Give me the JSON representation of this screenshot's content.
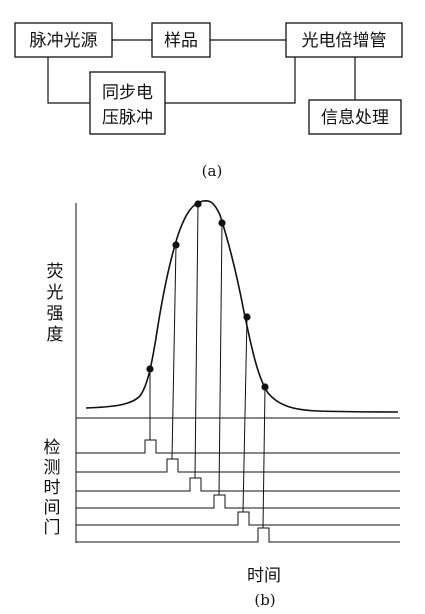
{
  "part_a": {
    "caption": "(a)",
    "boxes": {
      "pulse_source": "脉冲光源",
      "sample": "样品",
      "pmt": "光电倍增管",
      "sync_line1": "同步电",
      "sync_line2": "压脉冲",
      "info_processing": "信息处理"
    }
  },
  "part_b": {
    "caption": "(b)",
    "y_axis_label": [
      "荧",
      "光",
      "强",
      "度"
    ],
    "gate_label": [
      "检",
      "测",
      "时",
      "间",
      "门"
    ],
    "x_axis_label": "时间"
  }
}
